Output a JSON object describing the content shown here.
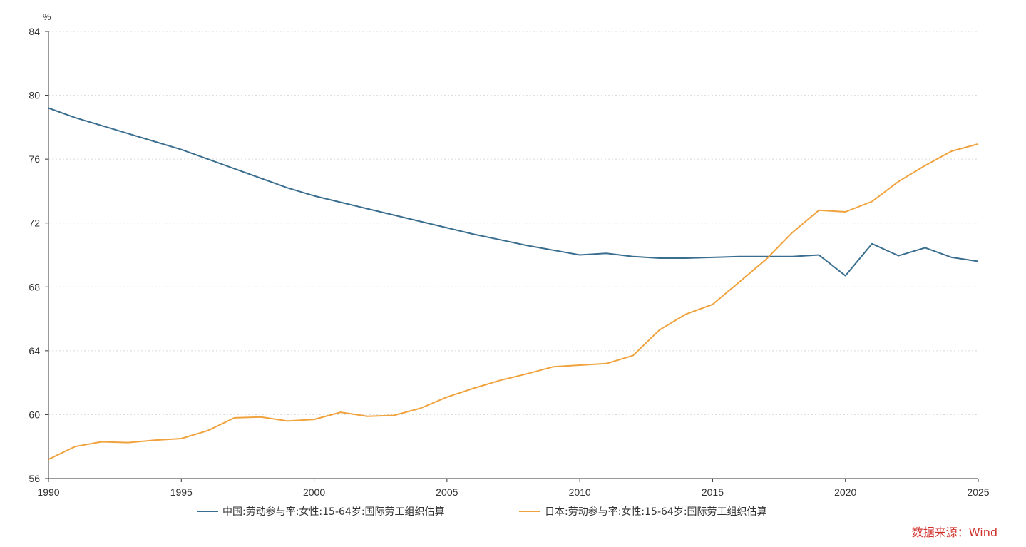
{
  "chart_data": {
    "type": "line",
    "unit": "%",
    "xlim": [
      1990,
      2025
    ],
    "ylim": [
      56,
      84
    ],
    "xticks": [
      "1990",
      "1995",
      "2000",
      "2005",
      "2010",
      "2015",
      "2020",
      "2025"
    ],
    "yticks": [
      "56",
      "60",
      "64",
      "68",
      "72",
      "76",
      "80",
      "84"
    ],
    "grid": "horizontal-dotted",
    "legend_position": "bottom",
    "series": [
      {
        "name": "中国:劳动参与率:女性:15-64岁:国际劳工组织估算",
        "color": "#3a6e8f",
        "x": [
          1990,
          1991,
          1992,
          1993,
          1994,
          1995,
          1996,
          1997,
          1998,
          1999,
          2000,
          2001,
          2002,
          2003,
          2004,
          2005,
          2006,
          2007,
          2008,
          2009,
          2010,
          2011,
          2012,
          2013,
          2014,
          2015,
          2016,
          2017,
          2018,
          2019,
          2020,
          2021,
          2022,
          2023,
          2024,
          2025
        ],
        "values": [
          79.2,
          78.6,
          78.1,
          77.6,
          77.1,
          76.6,
          76.0,
          75.4,
          74.8,
          74.2,
          73.7,
          73.3,
          72.9,
          72.5,
          72.1,
          71.7,
          71.3,
          70.95,
          70.6,
          70.3,
          70.0,
          70.1,
          69.9,
          69.8,
          69.8,
          69.85,
          69.9,
          69.9,
          69.9,
          70.0,
          68.7,
          70.7,
          69.95,
          70.45,
          69.85,
          69.6
        ]
      },
      {
        "name": "日本:劳动参与率:女性:15-64岁:国际劳工组织估算",
        "color": "#f0a23c",
        "x": [
          1990,
          1991,
          1992,
          1993,
          1994,
          1995,
          1996,
          1997,
          1998,
          1999,
          2000,
          2001,
          2002,
          2003,
          2004,
          2005,
          2006,
          2007,
          2008,
          2009,
          2010,
          2011,
          2012,
          2013,
          2014,
          2015,
          2016,
          2017,
          2018,
          2019,
          2020,
          2021,
          2022,
          2023,
          2024,
          2025
        ],
        "values": [
          57.2,
          58.0,
          58.3,
          58.25,
          58.4,
          58.5,
          59.0,
          59.8,
          59.85,
          59.6,
          59.7,
          60.15,
          59.9,
          59.95,
          60.4,
          61.1,
          61.65,
          62.15,
          62.55,
          63.0,
          63.1,
          63.2,
          63.7,
          65.3,
          66.3,
          66.9,
          68.3,
          69.7,
          71.4,
          72.8,
          72.7,
          73.35,
          74.6,
          75.6,
          76.5,
          76.95
        ]
      }
    ]
  },
  "source_text": "数据来源：Wind"
}
